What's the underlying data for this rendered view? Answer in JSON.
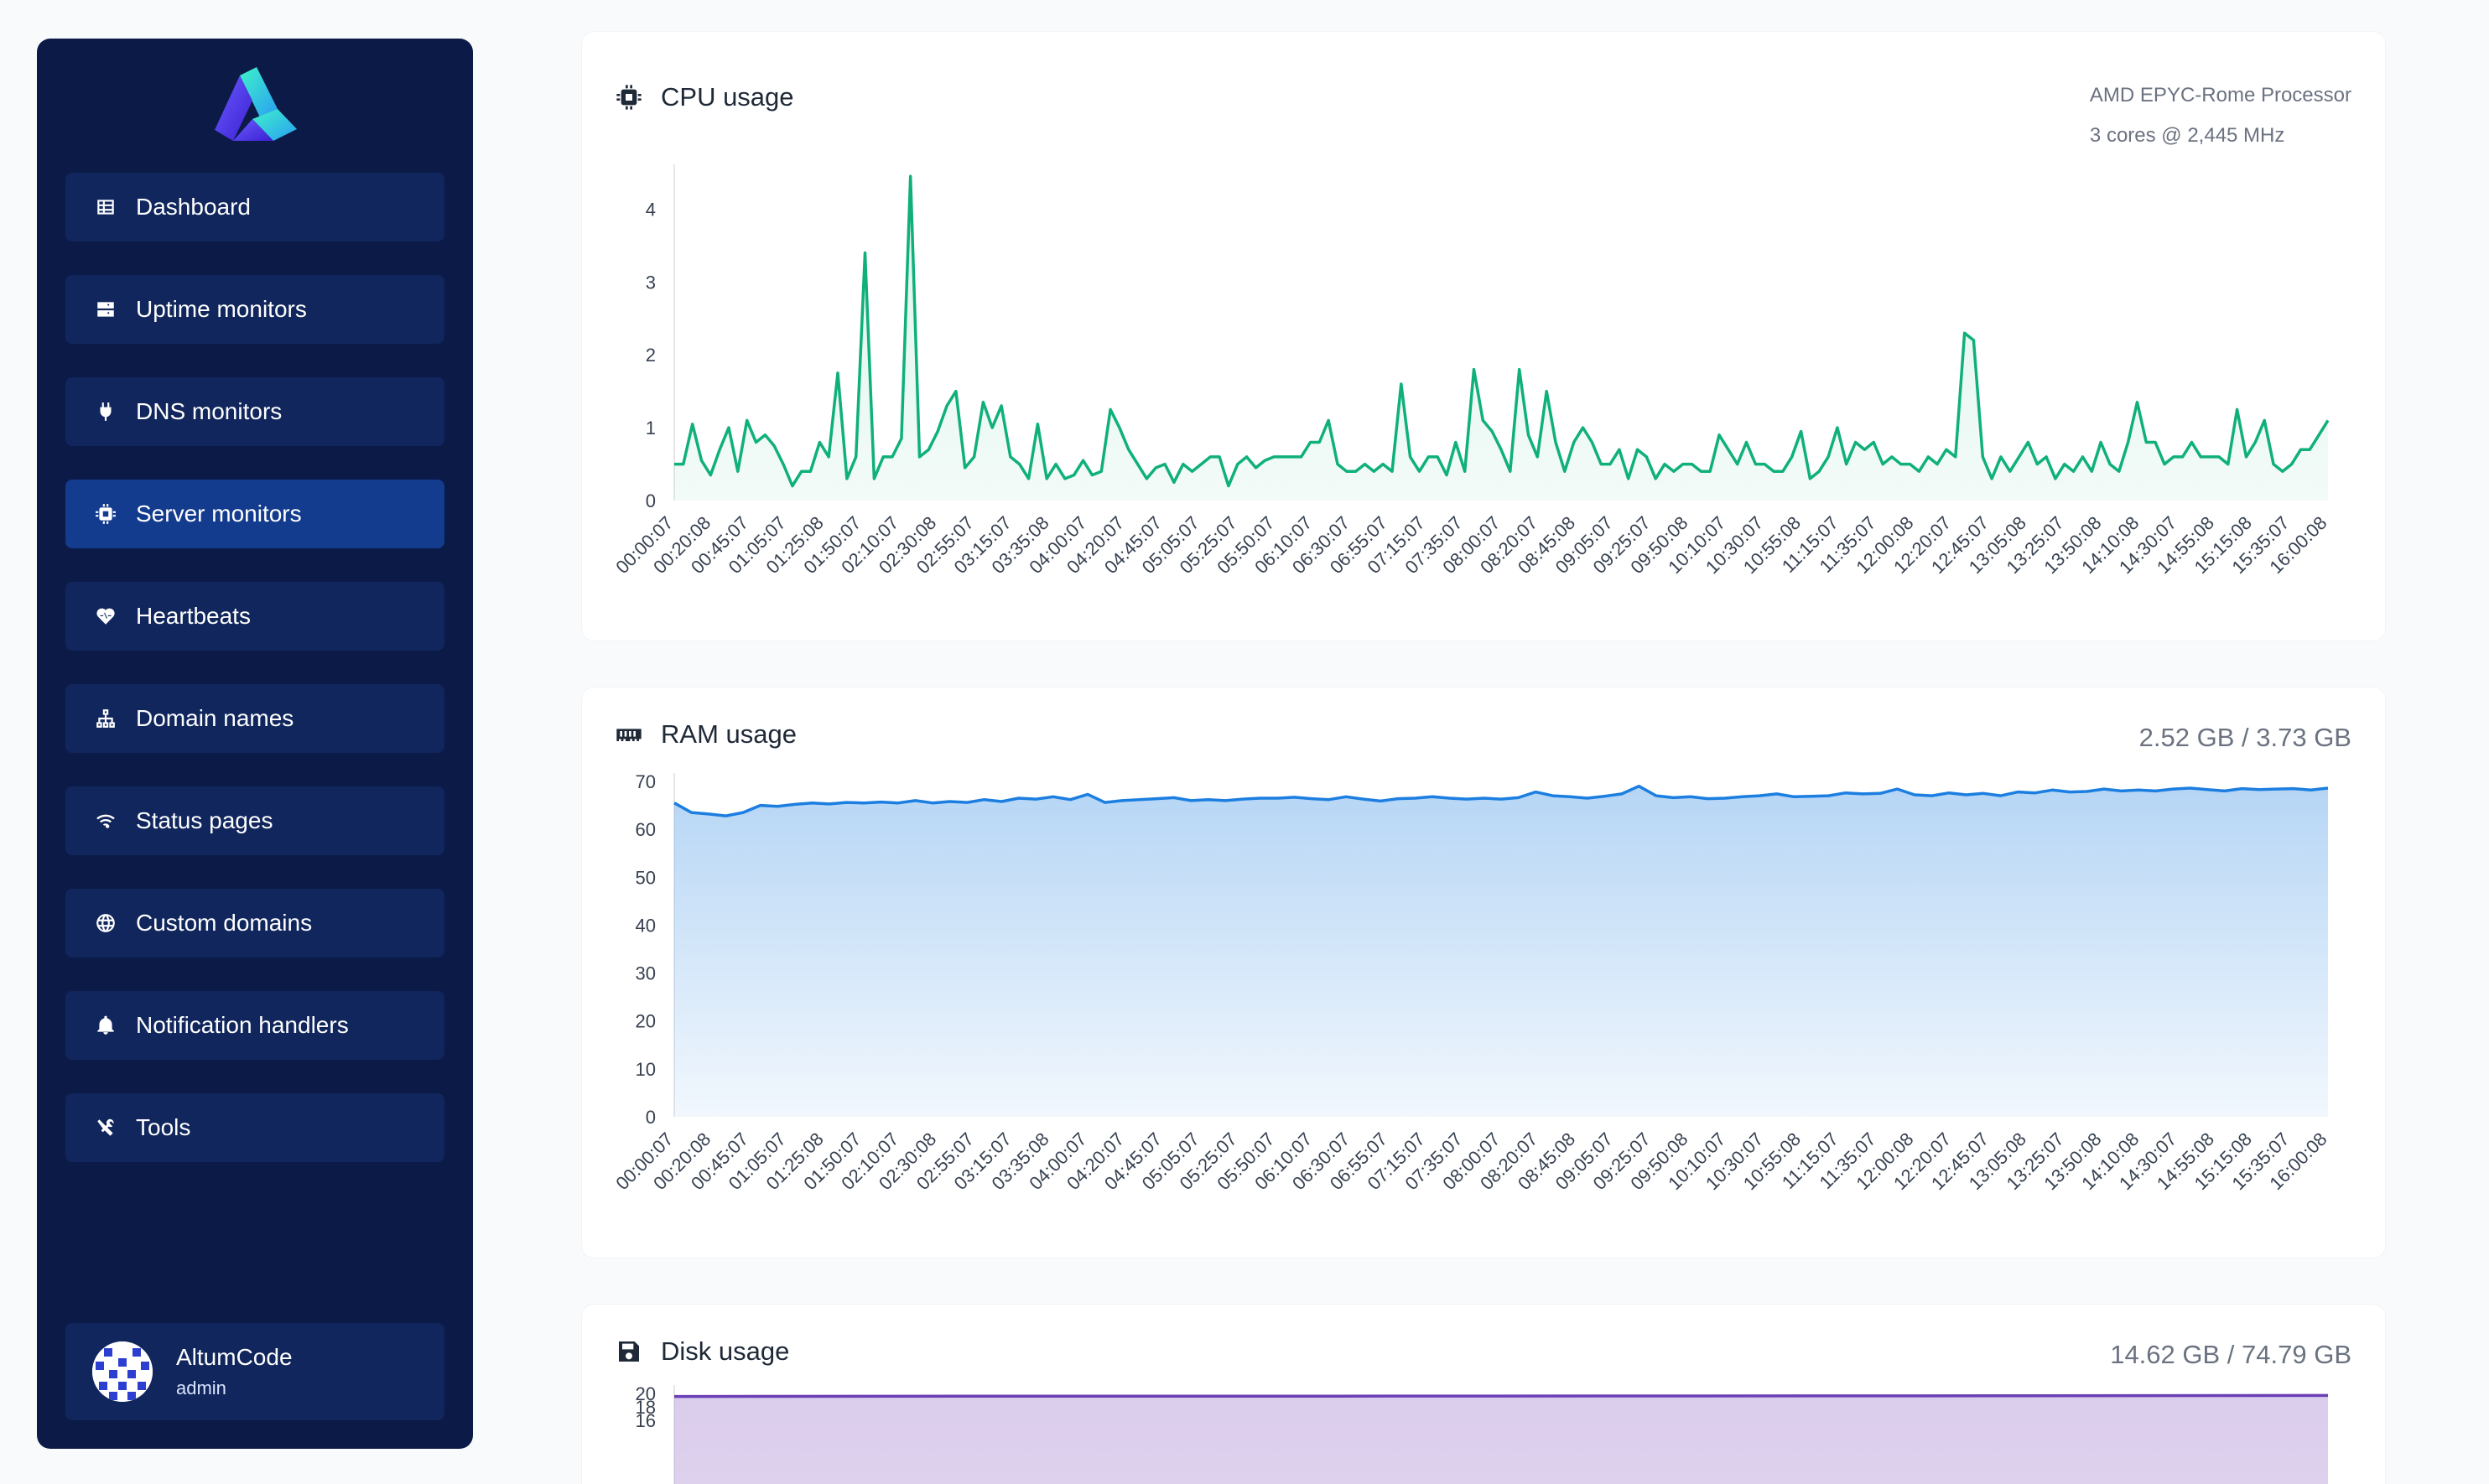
{
  "sidebar": {
    "logo_icon": "altum-logo-icon",
    "items": [
      {
        "label": "Dashboard",
        "icon": "table-icon"
      },
      {
        "label": "Uptime monitors",
        "icon": "server-icon"
      },
      {
        "label": "DNS monitors",
        "icon": "plug-icon"
      },
      {
        "label": "Server monitors",
        "icon": "chip-icon",
        "active": true
      },
      {
        "label": "Heartbeats",
        "icon": "heart-pulse-icon"
      },
      {
        "label": "Domain names",
        "icon": "network-icon"
      },
      {
        "label": "Status pages",
        "icon": "wifi-icon"
      },
      {
        "label": "Custom domains",
        "icon": "globe-icon"
      },
      {
        "label": "Notification handlers",
        "icon": "bell-icon"
      },
      {
        "label": "Tools",
        "icon": "tools-icon"
      }
    ],
    "user": {
      "name": "AltumCode",
      "role": "admin"
    }
  },
  "cpu": {
    "title": "CPU usage",
    "processor": "AMD EPYC-Rome Processor",
    "cores": "3 cores @ 2,445 MHz"
  },
  "ram": {
    "title": "RAM usage",
    "summary": "2.52 GB / 3.73 GB"
  },
  "disk": {
    "title": "Disk usage",
    "summary": "14.62 GB / 74.79 GB"
  },
  "colors": {
    "sidebar_bg": "#0c1a47",
    "nav_item_bg": "#10265c",
    "nav_active_bg": "#133b8e",
    "cpu_line": "#10b07a",
    "ram_line": "#1b7ee0",
    "disk_line": "#6a3fb5"
  },
  "chart_data": [
    {
      "type": "area",
      "title": "CPU usage",
      "ylim": [
        0,
        4.5
      ],
      "yticks": [
        0,
        1,
        2,
        3,
        4
      ],
      "x_tick_labels": [
        "00:00:07",
        "00:20:08",
        "00:45:07",
        "01:05:07",
        "01:25:08",
        "01:50:07",
        "02:10:07",
        "02:30:08",
        "02:55:07",
        "03:15:07",
        "03:35:08",
        "04:00:07",
        "04:20:07",
        "04:45:07",
        "05:05:07",
        "05:25:07",
        "05:50:07",
        "06:10:07",
        "06:30:07",
        "06:55:07",
        "07:15:07",
        "07:35:07",
        "08:00:07",
        "08:20:07",
        "08:45:08",
        "09:05:07",
        "09:25:07",
        "09:50:08",
        "10:10:07",
        "10:30:07",
        "10:55:08",
        "11:15:07",
        "11:35:07",
        "12:00:08",
        "12:20:07",
        "12:45:07",
        "13:05:08",
        "13:25:07",
        "13:50:08",
        "14:10:08",
        "14:30:07",
        "14:55:08",
        "15:15:08",
        "15:35:07",
        "16:00:08"
      ],
      "values": [
        0.5,
        0.5,
        1.05,
        0.55,
        0.35,
        0.7,
        1.0,
        0.4,
        1.1,
        0.8,
        0.9,
        0.75,
        0.5,
        0.2,
        0.4,
        0.4,
        0.8,
        0.6,
        1.75,
        0.3,
        0.6,
        3.4,
        0.3,
        0.6,
        0.6,
        0.85,
        4.45,
        0.6,
        0.7,
        0.95,
        1.3,
        1.5,
        0.45,
        0.6,
        1.35,
        1.0,
        1.3,
        0.6,
        0.5,
        0.3,
        1.05,
        0.3,
        0.5,
        0.3,
        0.35,
        0.55,
        0.35,
        0.4,
        1.25,
        1.0,
        0.7,
        0.5,
        0.3,
        0.45,
        0.5,
        0.25,
        0.5,
        0.4,
        0.5,
        0.6,
        0.6,
        0.2,
        0.5,
        0.6,
        0.45,
        0.55,
        0.6,
        0.6,
        0.6,
        0.6,
        0.8,
        0.8,
        1.1,
        0.5,
        0.4,
        0.4,
        0.5,
        0.4,
        0.5,
        0.4,
        1.6,
        0.6,
        0.4,
        0.6,
        0.6,
        0.35,
        0.8,
        0.4,
        1.8,
        1.1,
        0.95,
        0.7,
        0.4,
        1.8,
        0.9,
        0.6,
        1.5,
        0.8,
        0.4,
        0.8,
        1.0,
        0.8,
        0.5,
        0.5,
        0.7,
        0.3,
        0.7,
        0.6,
        0.3,
        0.5,
        0.4,
        0.5,
        0.5,
        0.4,
        0.4,
        0.9,
        0.7,
        0.5,
        0.8,
        0.5,
        0.5,
        0.4,
        0.4,
        0.6,
        0.95,
        0.3,
        0.4,
        0.6,
        1.0,
        0.5,
        0.8,
        0.7,
        0.8,
        0.5,
        0.6,
        0.5,
        0.5,
        0.4,
        0.6,
        0.5,
        0.7,
        0.6,
        2.3,
        2.2,
        0.6,
        0.3,
        0.6,
        0.4,
        0.6,
        0.8,
        0.5,
        0.6,
        0.3,
        0.5,
        0.4,
        0.6,
        0.4,
        0.8,
        0.5,
        0.4,
        0.8,
        1.35,
        0.8,
        0.8,
        0.5,
        0.6,
        0.6,
        0.8,
        0.6,
        0.6,
        0.6,
        0.5,
        1.25,
        0.6,
        0.8,
        1.1,
        0.5,
        0.4,
        0.5,
        0.7,
        0.7,
        0.9,
        1.1
      ]
    },
    {
      "type": "area",
      "title": "RAM usage",
      "ylim": [
        0,
        70
      ],
      "yticks": [
        0,
        10,
        20,
        30,
        40,
        50,
        60,
        70
      ],
      "x_tick_labels": [
        "00:00:07",
        "00:20:08",
        "00:45:07",
        "01:05:07",
        "01:25:08",
        "01:50:07",
        "02:10:07",
        "02:30:08",
        "02:55:07",
        "03:15:07",
        "03:35:08",
        "04:00:07",
        "04:20:07",
        "04:45:07",
        "05:05:07",
        "05:25:07",
        "05:50:07",
        "06:10:07",
        "06:30:07",
        "06:55:07",
        "07:15:07",
        "07:35:07",
        "08:00:07",
        "08:20:07",
        "08:45:08",
        "09:05:07",
        "09:25:07",
        "09:50:08",
        "10:10:07",
        "10:30:07",
        "10:55:08",
        "11:15:07",
        "11:35:07",
        "12:00:08",
        "12:20:07",
        "12:45:07",
        "13:05:08",
        "13:25:07",
        "13:50:08",
        "14:10:08",
        "14:30:07",
        "14:55:08",
        "15:15:08",
        "15:35:07",
        "16:00:08"
      ],
      "values": [
        65.5,
        63.5,
        63.2,
        62.8,
        63.5,
        65.0,
        64.8,
        65.2,
        65.5,
        65.3,
        65.6,
        65.5,
        65.7,
        65.5,
        66.0,
        65.5,
        65.8,
        65.6,
        66.2,
        65.8,
        66.5,
        66.3,
        66.8,
        66.2,
        67.3,
        65.6,
        66.0,
        66.2,
        66.4,
        66.6,
        66.0,
        66.2,
        66.0,
        66.3,
        66.5,
        66.5,
        66.7,
        66.4,
        66.2,
        66.8,
        66.3,
        65.9,
        66.4,
        66.5,
        66.8,
        66.5,
        66.3,
        66.5,
        66.3,
        66.6,
        67.8,
        67.0,
        66.8,
        66.5,
        66.9,
        67.4,
        69.0,
        67.0,
        66.6,
        66.8,
        66.4,
        66.5,
        66.8,
        67.0,
        67.4,
        66.8,
        66.9,
        67.0,
        67.6,
        67.4,
        67.5,
        68.4,
        67.2,
        67.0,
        67.6,
        67.2,
        67.5,
        67.0,
        67.8,
        67.6,
        68.2,
        67.8,
        67.9,
        68.4,
        68.0,
        68.2,
        68.0,
        68.4,
        68.6,
        68.3,
        68.0,
        68.5,
        68.3,
        68.4,
        68.5,
        68.2,
        68.6
      ]
    },
    {
      "type": "area",
      "title": "Disk usage",
      "ylim": [
        0,
        20
      ],
      "yticks": [
        16,
        18,
        20
      ],
      "values": [
        19.55,
        19.6,
        19.6,
        19.62,
        19.65,
        19.7
      ]
    }
  ]
}
